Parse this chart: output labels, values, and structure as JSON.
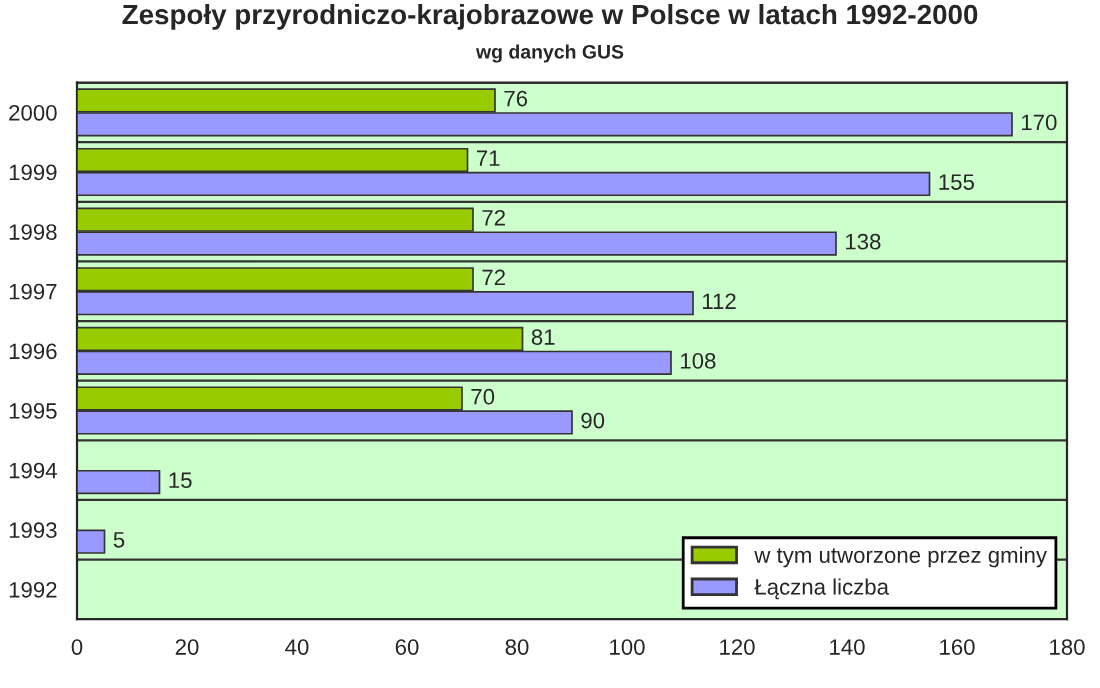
{
  "chart_data": {
    "type": "bar",
    "orientation": "horizontal",
    "title": "Zespoły przyrodniczo-krajobrazowe w Polsce w latach 1992-2000",
    "subtitle": "wg danych GUS",
    "categories": [
      "2000",
      "1999",
      "1998",
      "1997",
      "1996",
      "1995",
      "1994",
      "1993",
      "1992"
    ],
    "series": [
      {
        "name": "w tym utworzone przez gminy",
        "color": "#99cc00",
        "values": [
          76,
          71,
          72,
          72,
          81,
          70,
          null,
          null,
          null
        ]
      },
      {
        "name": "Łączna liczba",
        "color": "#9999ff",
        "values": [
          170,
          155,
          138,
          112,
          108,
          90,
          15,
          5,
          null
        ]
      }
    ],
    "xlim": [
      0,
      180
    ],
    "xticks": [
      0,
      20,
      40,
      60,
      80,
      100,
      120,
      140,
      160,
      180
    ],
    "data_labels": true,
    "grid": "y",
    "legend": "bottom right"
  }
}
